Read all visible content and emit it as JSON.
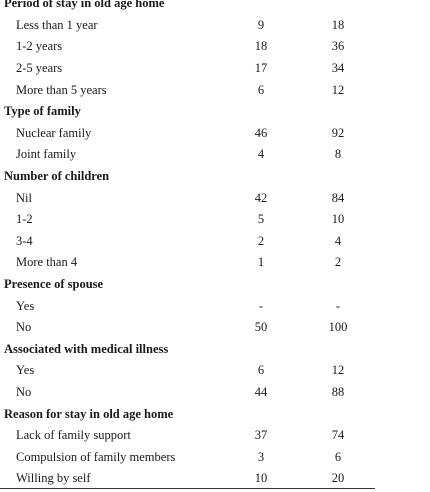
{
  "table": {
    "sections": [
      {
        "title": "Period of stay in old age home",
        "rows": [
          [
            "Less than 1 year",
            9,
            18
          ],
          [
            "1-2 years",
            18,
            36
          ],
          [
            "2-5 years",
            17,
            34
          ],
          [
            "More than 5 years",
            6,
            12
          ]
        ]
      },
      {
        "title": "Type of family",
        "rows": [
          [
            "Nuclear family",
            46,
            92
          ],
          [
            "Joint family",
            4,
            8
          ]
        ]
      },
      {
        "title": "Number of children",
        "rows": [
          [
            "Nil",
            42,
            84
          ],
          [
            "1-2",
            5,
            10
          ],
          [
            "3-4",
            2,
            4
          ],
          [
            "More than 4",
            1,
            2
          ]
        ]
      },
      {
        "title": "Presence of spouse",
        "rows": [
          [
            "Yes",
            "-",
            "-"
          ],
          [
            "No",
            50,
            100
          ]
        ]
      },
      {
        "title": "Associated with medical illness",
        "rows": [
          [
            "Yes",
            6,
            12
          ],
          [
            "No",
            44,
            88
          ]
        ]
      },
      {
        "title": "Reason for stay in old age home",
        "rows": [
          [
            "Lack of family support",
            37,
            74
          ],
          [
            "Compulsion of family members",
            3,
            6
          ],
          [
            "Willing by self",
            10,
            20
          ]
        ]
      }
    ]
  }
}
